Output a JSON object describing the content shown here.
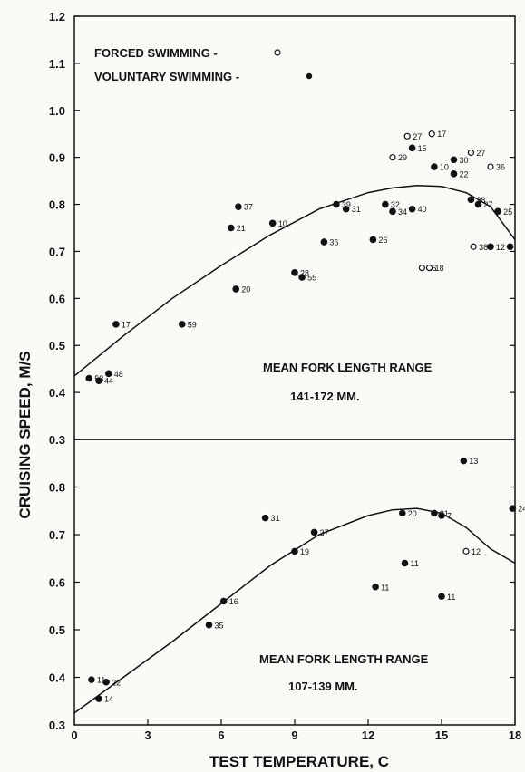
{
  "chart_data": {
    "type": "scatter",
    "ylabel": "CRUISING SPEED, M/S",
    "xlabel": "TEST TEMPERATURE, C",
    "x_ticks": [
      0,
      3,
      6,
      9,
      12,
      15,
      18
    ],
    "legend": {
      "placement": "top-left",
      "entries": [
        {
          "label": "FORCED SWIMMING -",
          "marker": "open-circle"
        },
        {
          "label": "VOLUNTARY SWIMMING -",
          "marker": "filled-circle"
        }
      ]
    },
    "panels": [
      {
        "id": "upper",
        "annotation_line1": "MEAN FORK LENGTH RANGE",
        "annotation_line2": "141-172 MM.",
        "xlim": [
          0,
          18
        ],
        "ylim": [
          0.3,
          1.2
        ],
        "y_ticks": [
          "0.3",
          "0.4",
          "0.5",
          "0.6",
          "0.7",
          "0.8",
          "0.9",
          "1.0",
          "1.1",
          "1.2"
        ],
        "curve": [
          [
            0,
            0.435
          ],
          [
            2,
            0.52
          ],
          [
            4,
            0.6
          ],
          [
            6,
            0.67
          ],
          [
            8,
            0.735
          ],
          [
            10,
            0.79
          ],
          [
            12,
            0.825
          ],
          [
            13,
            0.835
          ],
          [
            14,
            0.84
          ],
          [
            15,
            0.838
          ],
          [
            16,
            0.825
          ],
          [
            17,
            0.795
          ],
          [
            18,
            0.725
          ]
        ],
        "points": [
          {
            "x": 0.6,
            "y": 0.43,
            "label": "53",
            "forced": false
          },
          {
            "x": 1.0,
            "y": 0.425,
            "label": "44",
            "forced": false
          },
          {
            "x": 1.4,
            "y": 0.44,
            "label": "48",
            "forced": false
          },
          {
            "x": 1.7,
            "y": 0.545,
            "label": "17",
            "forced": false
          },
          {
            "x": 4.4,
            "y": 0.545,
            "label": "59",
            "forced": false
          },
          {
            "x": 6.7,
            "y": 0.795,
            "label": "37",
            "forced": false
          },
          {
            "x": 6.4,
            "y": 0.75,
            "label": "21",
            "forced": false
          },
          {
            "x": 6.6,
            "y": 0.62,
            "label": "20",
            "forced": false
          },
          {
            "x": 8.1,
            "y": 0.76,
            "label": "10",
            "forced": false
          },
          {
            "x": 9.0,
            "y": 0.655,
            "label": "28",
            "forced": false
          },
          {
            "x": 9.3,
            "y": 0.645,
            "label": "55",
            "forced": false
          },
          {
            "x": 10.2,
            "y": 0.72,
            "label": "36",
            "forced": false
          },
          {
            "x": 10.7,
            "y": 0.8,
            "label": "39",
            "forced": false
          },
          {
            "x": 11.1,
            "y": 0.79,
            "label": "31",
            "forced": false
          },
          {
            "x": 12.2,
            "y": 0.725,
            "label": "26",
            "forced": false
          },
          {
            "x": 12.7,
            "y": 0.8,
            "label": "32",
            "forced": false
          },
          {
            "x": 13.0,
            "y": 0.785,
            "label": "34",
            "forced": false
          },
          {
            "x": 13.8,
            "y": 0.79,
            "label": "40",
            "forced": false
          },
          {
            "x": 13.6,
            "y": 0.945,
            "label": "27",
            "forced": true
          },
          {
            "x": 14.6,
            "y": 0.95,
            "label": "17",
            "forced": true
          },
          {
            "x": 13.0,
            "y": 0.9,
            "label": "29",
            "forced": true
          },
          {
            "x": 13.8,
            "y": 0.92,
            "label": "15",
            "forced": false
          },
          {
            "x": 14.7,
            "y": 0.88,
            "label": "10",
            "forced": false
          },
          {
            "x": 15.5,
            "y": 0.895,
            "label": "30",
            "forced": false
          },
          {
            "x": 15.5,
            "y": 0.865,
            "label": "22",
            "forced": false
          },
          {
            "x": 16.2,
            "y": 0.91,
            "label": "27",
            "forced": true
          },
          {
            "x": 17.0,
            "y": 0.88,
            "label": "36",
            "forced": true
          },
          {
            "x": 14.2,
            "y": 0.665,
            "label": "15",
            "forced": true
          },
          {
            "x": 14.5,
            "y": 0.665,
            "label": "18",
            "forced": true
          },
          {
            "x": 16.2,
            "y": 0.81,
            "label": "28",
            "forced": false
          },
          {
            "x": 16.3,
            "y": 0.71,
            "label": "38",
            "forced": true
          },
          {
            "x": 16.5,
            "y": 0.8,
            "label": "27",
            "forced": false
          },
          {
            "x": 17.0,
            "y": 0.71,
            "label": "12",
            "forced": false
          },
          {
            "x": 17.3,
            "y": 0.785,
            "label": "25",
            "forced": false
          },
          {
            "x": 17.8,
            "y": 0.71,
            "label": "",
            "forced": false
          }
        ]
      },
      {
        "id": "lower",
        "annotation_line1": "MEAN FORK LENGTH RANGE",
        "annotation_line2": "107-139 MM.",
        "xlim": [
          0,
          18
        ],
        "ylim": [
          0.3,
          0.9
        ],
        "y_ticks": [
          "0.3",
          "0.4",
          "0.5",
          "0.6",
          "0.7",
          "0.8"
        ],
        "curve": [
          [
            0,
            0.325
          ],
          [
            2,
            0.4
          ],
          [
            4,
            0.475
          ],
          [
            6,
            0.555
          ],
          [
            8,
            0.635
          ],
          [
            10,
            0.7
          ],
          [
            12,
            0.74
          ],
          [
            13,
            0.752
          ],
          [
            14,
            0.755
          ],
          [
            15,
            0.745
          ],
          [
            16,
            0.715
          ],
          [
            17,
            0.67
          ],
          [
            18,
            0.64
          ]
        ],
        "points": [
          {
            "x": 0.7,
            "y": 0.395,
            "label": "11",
            "forced": false
          },
          {
            "x": 1.3,
            "y": 0.39,
            "label": "22",
            "forced": false
          },
          {
            "x": 1.0,
            "y": 0.355,
            "label": "14",
            "forced": false
          },
          {
            "x": 5.5,
            "y": 0.51,
            "label": "35",
            "forced": false
          },
          {
            "x": 6.1,
            "y": 0.56,
            "label": "16",
            "forced": false
          },
          {
            "x": 7.8,
            "y": 0.735,
            "label": "31",
            "forced": false
          },
          {
            "x": 9.0,
            "y": 0.665,
            "label": "19",
            "forced": false
          },
          {
            "x": 9.8,
            "y": 0.705,
            "label": "37",
            "forced": false
          },
          {
            "x": 12.3,
            "y": 0.59,
            "label": "11",
            "forced": false
          },
          {
            "x": 13.5,
            "y": 0.64,
            "label": "11",
            "forced": false
          },
          {
            "x": 13.4,
            "y": 0.745,
            "label": "20",
            "forced": false
          },
          {
            "x": 14.7,
            "y": 0.745,
            "label": "31",
            "forced": false
          },
          {
            "x": 15.0,
            "y": 0.74,
            "label": "7",
            "forced": false
          },
          {
            "x": 15.0,
            "y": 0.57,
            "label": "11",
            "forced": false
          },
          {
            "x": 16.0,
            "y": 0.665,
            "label": "12",
            "forced": true
          },
          {
            "x": 15.9,
            "y": 0.855,
            "label": "13",
            "forced": false
          },
          {
            "x": 17.9,
            "y": 0.755,
            "label": "24",
            "forced": false
          }
        ]
      }
    ]
  }
}
